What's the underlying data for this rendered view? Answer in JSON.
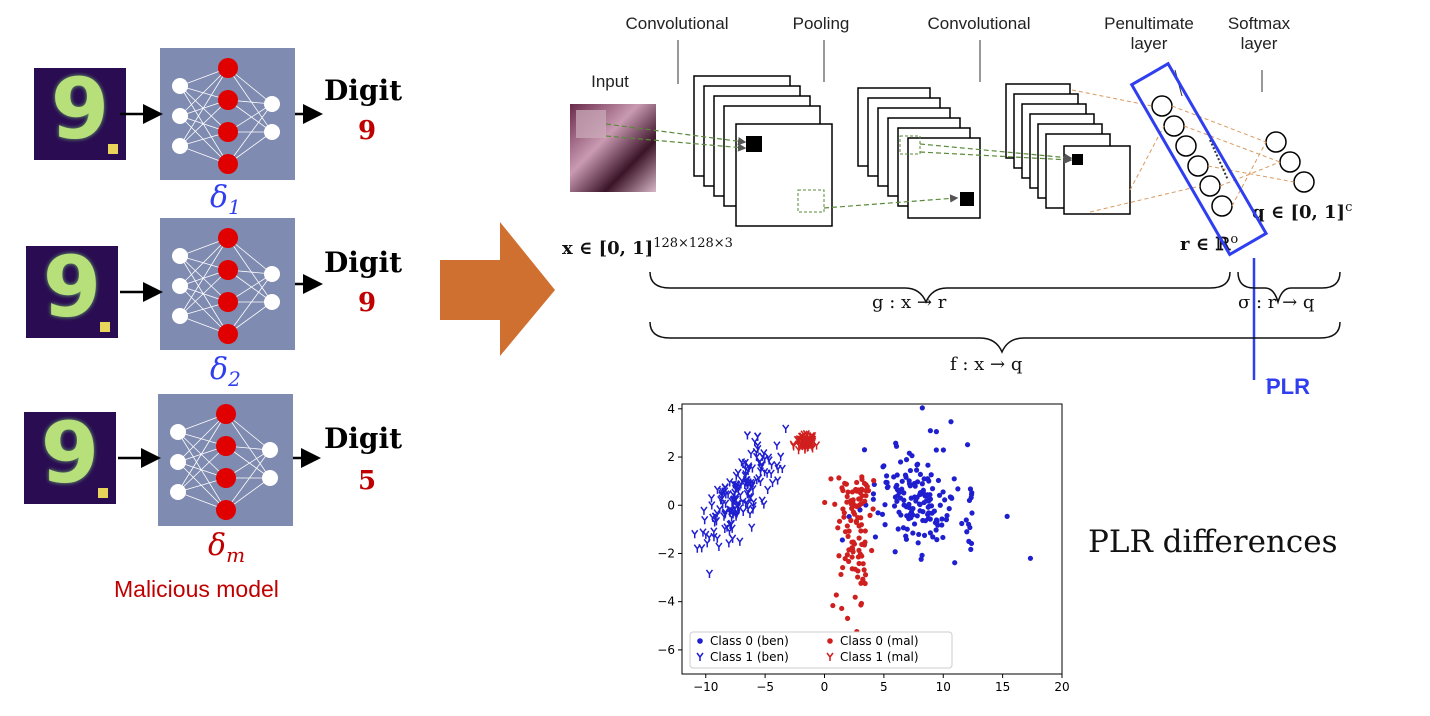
{
  "left": {
    "models": [
      {
        "digit_word": "Digit",
        "digit_value": "9",
        "delta": "δ",
        "delta_sub": "1",
        "delta_color": "#2f3ff0"
      },
      {
        "digit_word": "Digit",
        "digit_value": "9",
        "delta": "δ",
        "delta_sub": "2",
        "delta_color": "#2f3ff0"
      },
      {
        "digit_word": "Digit",
        "digit_value": "5",
        "delta": "δ",
        "delta_sub": "m",
        "delta_color": "#c00000"
      }
    ],
    "input_digit": "9",
    "malicious_label": "Malicious model"
  },
  "cnn": {
    "labels": {
      "input": "Input",
      "conv1": "Convolutional",
      "pooling": "Pooling",
      "conv2": "Convolutional",
      "penultimate": "Penultimate layer",
      "softmax": "Softmax layer"
    },
    "math": {
      "x_domain": "x ∈ [0, 1]",
      "x_sup": "128×128×3",
      "r_domain": "r ∈ ℝ",
      "r_sup": "o",
      "q_domain": "q ∈ [0, 1]",
      "q_sup": "c",
      "g_map": "g : x → r",
      "sigma_map": "σ : r → q",
      "f_map": "f : x → q"
    },
    "plr_label": "PLR"
  },
  "plr_differences": "PLR differences",
  "chart_data": {
    "type": "scatter",
    "xlim": [
      -12,
      20
    ],
    "ylim": [
      -7,
      4.2
    ],
    "xticks": [
      -10,
      -5,
      0,
      5,
      10,
      15,
      20
    ],
    "yticks": [
      4,
      2,
      0,
      -2,
      -4,
      -6
    ],
    "legend": [
      "Class 0 (ben)",
      "Class 0 (mal)",
      "Class 1 (ben)",
      "Class 1 (mal)"
    ],
    "legend_position": "lower-left",
    "series": [
      {
        "name": "Class 0 (ben)",
        "color": "#1f1fd0",
        "marker": "dot",
        "center": [
          8,
          0
        ],
        "spread": [
          4,
          1.6
        ],
        "count": 170
      },
      {
        "name": "Class 0 (mal)",
        "color": "#d01f1f",
        "marker": "dot",
        "center": [
          2.5,
          0.5
        ],
        "spread": [
          1.2,
          2
        ],
        "count": 110
      },
      {
        "name": "Class 1 (ben)",
        "color": "#1f1fd0",
        "marker": "tri",
        "center": [
          -7,
          0.5
        ],
        "spread": [
          2.5,
          2
        ],
        "count": 160
      },
      {
        "name": "Class 1 (mal)",
        "color": "#d01f1f",
        "marker": "tri",
        "center": [
          -1.5,
          2.6
        ],
        "spread": [
          0.7,
          0.25
        ],
        "count": 60
      }
    ]
  }
}
